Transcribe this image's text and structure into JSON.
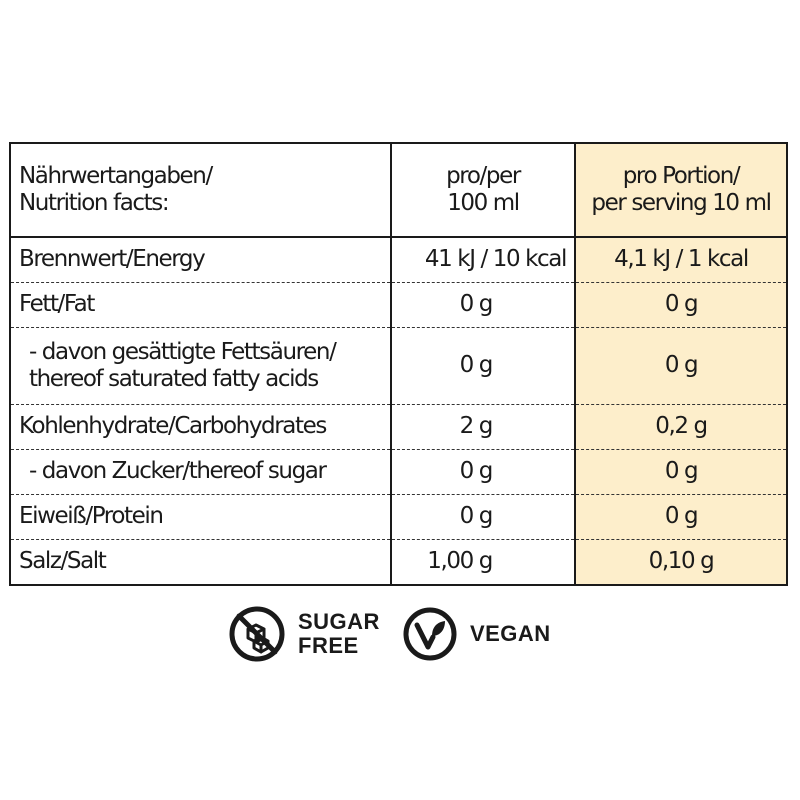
{
  "table": {
    "header": {
      "label": "Nährwertangaben/\nNutrition facts:",
      "per100": "pro/per\n100 ml",
      "perServing": "pro Portion/\nper serving 10 ml"
    },
    "rows": [
      {
        "label": "Brennwert/Energy",
        "per100": "41 kJ / 10 kcal",
        "perServing": "4,1 kJ / 1 kcal"
      },
      {
        "label": "Fett/Fat",
        "per100": "0 g",
        "perServing": "0 g"
      },
      {
        "label": "- davon gesättigte Fettsäuren/\nthereof saturated fatty acids",
        "per100": "0 g",
        "perServing": "0 g"
      },
      {
        "label": "Kohlenhydrate/Carbohydrates",
        "per100": "2 g",
        "perServing": "0,2 g"
      },
      {
        "label": "- davon Zucker/thereof sugar",
        "per100": "0 g",
        "perServing": "0 g"
      },
      {
        "label": "Eiweiß/Protein",
        "per100": "0 g",
        "perServing": "0 g"
      },
      {
        "label": "Salz/Salt",
        "per100": "1,00 g",
        "perServing": "0,10 g"
      }
    ]
  },
  "badges": {
    "sugarFree": {
      "icon": "sugar-cube-crossed-icon",
      "text": "SUGAR\nFREE"
    },
    "vegan": {
      "icon": "vegan-v-leaf-icon",
      "text": "VEGAN"
    }
  },
  "colors": {
    "text": "#1a1a1a",
    "servingColumn": "#fdeecb"
  }
}
